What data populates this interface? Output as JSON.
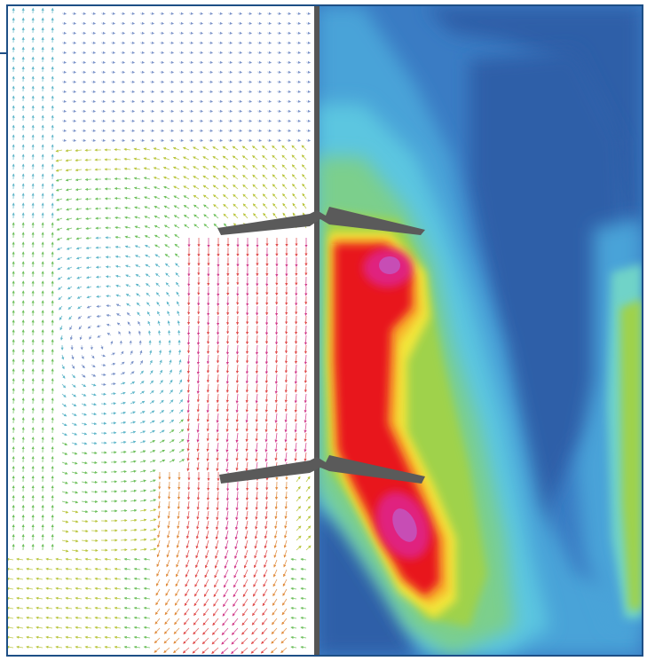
{
  "figure": {
    "left_panel": "velocity-vector-field",
    "right_panel": "velocity-magnitude-contour",
    "colors": {
      "frame": "#1d4f86",
      "shaft": "#555555",
      "blade": "#5a5a5a",
      "contour_levels": [
        "#2f5ea8",
        "#3a7cc4",
        "#4aa3d8",
        "#5cc6e0",
        "#6fd3c8",
        "#7ccf8c",
        "#9fd24b",
        "#c6dc3a",
        "#f2e63a",
        "#f8b12a",
        "#f26a1f",
        "#e8141e",
        "#e0207f",
        "#c74db5"
      ]
    }
  }
}
